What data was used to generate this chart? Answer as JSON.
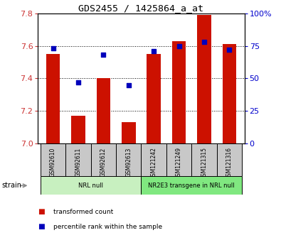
{
  "title": "GDS2455 / 1425864_a_at",
  "samples": [
    "GSM92610",
    "GSM92611",
    "GSM92612",
    "GSM92613",
    "GSM121242",
    "GSM121249",
    "GSM121315",
    "GSM121316"
  ],
  "red_values": [
    7.55,
    7.17,
    7.4,
    7.13,
    7.55,
    7.63,
    7.79,
    7.61
  ],
  "blue_values": [
    73,
    47,
    68,
    45,
    71,
    75,
    78,
    72
  ],
  "ylim_left": [
    7.0,
    7.8
  ],
  "ylim_right": [
    0,
    100
  ],
  "yticks_left": [
    7.0,
    7.2,
    7.4,
    7.6,
    7.8
  ],
  "yticks_right": [
    0,
    25,
    50,
    75,
    100
  ],
  "ytick_right_labels": [
    "0",
    "25",
    "50",
    "75",
    "100%"
  ],
  "groups": [
    {
      "label": "NRL null",
      "start": 0,
      "end": 4,
      "color": "#c8f0c0"
    },
    {
      "label": "NR2E3 transgene in NRL null",
      "start": 4,
      "end": 8,
      "color": "#80e880"
    }
  ],
  "bar_color": "#cc1100",
  "dot_color": "#0000bb",
  "grid_color": "#000000",
  "bg_color": "#ffffff",
  "tick_bg_color": "#c8c8c8",
  "left_tick_color": "#cc3333",
  "right_tick_color": "#0000cc",
  "legend_items": [
    {
      "color": "#cc1100",
      "label": "transformed count"
    },
    {
      "color": "#0000bb",
      "label": "percentile rank within the sample"
    }
  ]
}
